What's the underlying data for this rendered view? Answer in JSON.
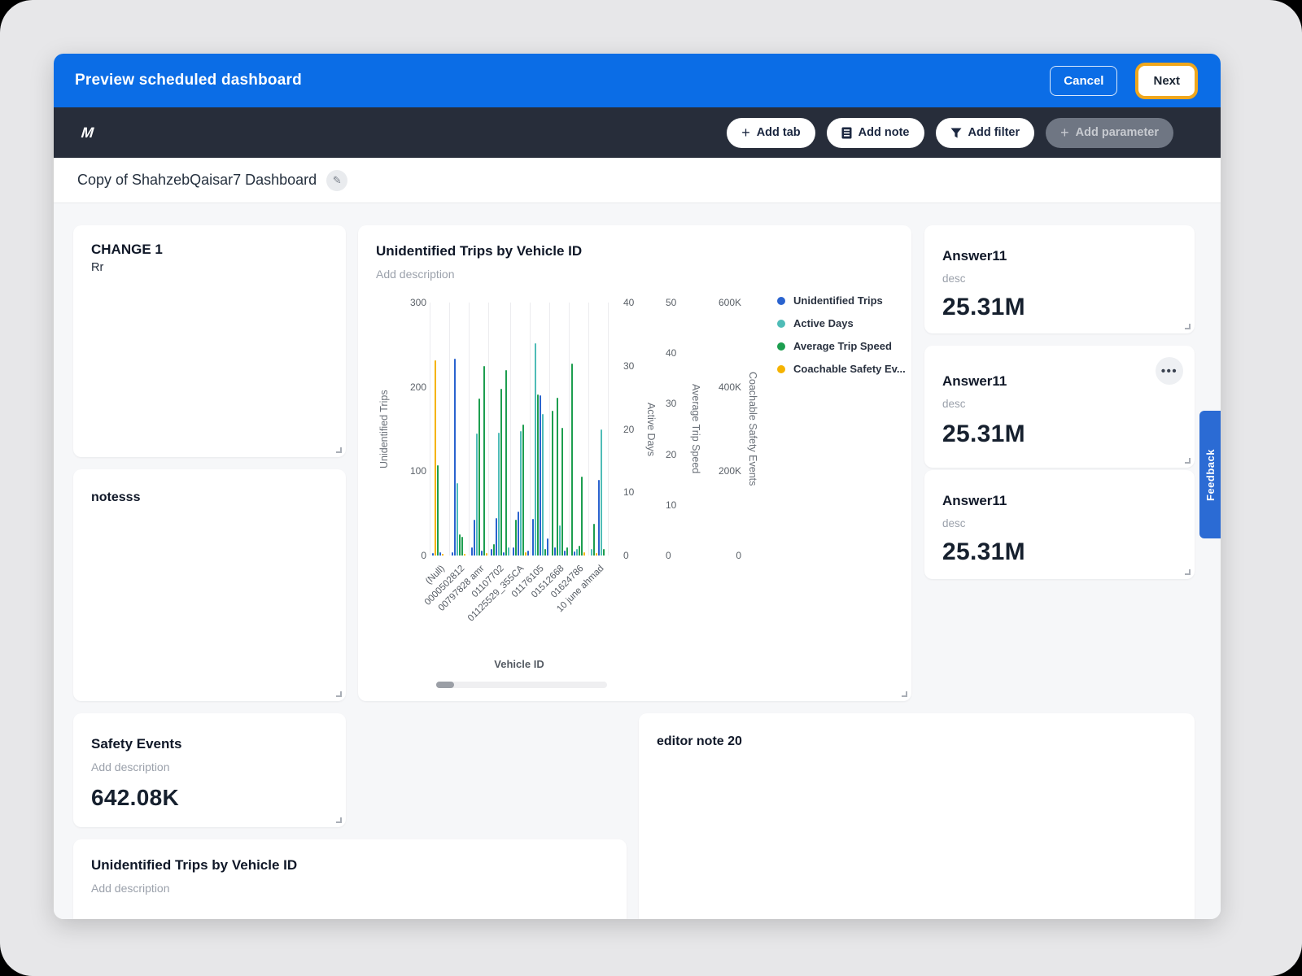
{
  "window": {
    "header": {
      "title": "Preview scheduled dashboard",
      "cancel_label": "Cancel",
      "next_label": "Next"
    },
    "toolbar": {
      "logo": "M",
      "add_tab": "Add tab",
      "add_note": "Add note",
      "add_filter": "Add filter",
      "add_parameter": "Add parameter"
    },
    "dashboard_title": "Copy of ShahzebQaisar7 Dashboard"
  },
  "cards": {
    "change1": {
      "title": "CHANGE 1",
      "body": "Rr"
    },
    "notes": {
      "title": "notesss"
    },
    "chart": {
      "title": "Unidentified Trips by Vehicle ID",
      "description": "Add description"
    },
    "answers": [
      {
        "title": "Answer11",
        "desc": "desc",
        "value": "25.31M"
      },
      {
        "title": "Answer11",
        "desc": "desc",
        "value": "25.31M",
        "menu_glyph": "•••"
      },
      {
        "title": "Answer11",
        "desc": "desc",
        "value": "25.31M"
      }
    ],
    "safety_events": {
      "title": "Safety Events",
      "description": "Add description",
      "value": "642.08K"
    },
    "bottom_chart": {
      "title": "Unidentified Trips by Vehicle ID",
      "description": "Add description"
    },
    "editor_note": {
      "title": "editor note 20"
    }
  },
  "feedback": {
    "label": "Feedback"
  },
  "colors": {
    "header_blue": "#0b6de6",
    "toolbar_dark": "#272d3a",
    "focus_ring": "#f0a71c",
    "feedback_blue": "#2b6bd4"
  },
  "chart_data": {
    "type": "bar",
    "title": "Unidentified Trips by Vehicle ID",
    "xlabel": "Vehicle ID",
    "categories": [
      "(Null)",
      "0000502812",
      "00797828 amr",
      "01107702",
      "01125529_355CA",
      "01176105",
      "01512668",
      "01624786",
      "10 june ahmad"
    ],
    "axes": [
      {
        "label": "Unidentified Trips",
        "side": "left",
        "ticks": [
          "0",
          "100",
          "200",
          "300"
        ],
        "range": [
          0,
          300
        ]
      },
      {
        "label": "Active Days",
        "side": "right",
        "ticks": [
          "0",
          "10",
          "20",
          "30",
          "40"
        ],
        "range": [
          0,
          40
        ]
      },
      {
        "label": "Average Trip Speed",
        "side": "right",
        "ticks": [
          "0",
          "10",
          "20",
          "30",
          "40",
          "50"
        ],
        "range": [
          0,
          50
        ]
      },
      {
        "label": "Coachable Safety Events",
        "side": "right",
        "ticks": [
          "0",
          "200K",
          "400K",
          "600K"
        ],
        "range": [
          0,
          600000
        ]
      }
    ],
    "legend": [
      {
        "name": "Unidentified Trips",
        "key": "b",
        "color": "#2a63cf"
      },
      {
        "name": "Active Days",
        "key": "t",
        "color": "#4fbcb7"
      },
      {
        "name": "Average Trip Speed",
        "key": "g",
        "color": "#1d9e4f"
      },
      {
        "name": "Coachable Safety Ev...",
        "key": "y",
        "color": "#f5b300"
      }
    ],
    "colors": {
      "b": "#2a63cf",
      "t": "#4fbcb7",
      "g": "#1d9e4f",
      "y": "#f5b300"
    },
    "left_axis_max": 300,
    "grid": true,
    "legend_position": "right",
    "groups": [
      {
        "category": "(Null)",
        "bars": [
          [
            "b",
            3
          ],
          [
            "y",
            232
          ],
          [
            "g",
            107
          ],
          [
            "b",
            4
          ],
          [
            "y",
            2
          ]
        ]
      },
      {
        "category": "0000502812",
        "bars": [
          [
            "b",
            4
          ],
          [
            "b",
            233
          ],
          [
            "t",
            86
          ],
          [
            "g",
            25
          ],
          [
            "g",
            22
          ],
          [
            "y",
            2
          ]
        ]
      },
      {
        "category": "00797828 amr",
        "bars": [
          [
            "b",
            10
          ],
          [
            "b",
            42
          ],
          [
            "t",
            145
          ],
          [
            "g",
            186
          ],
          [
            "b",
            6
          ],
          [
            "g",
            225
          ],
          [
            "y",
            3
          ]
        ]
      },
      {
        "category": "01107702",
        "bars": [
          [
            "b",
            8
          ],
          [
            "g",
            14
          ],
          [
            "b",
            44
          ],
          [
            "t",
            146
          ],
          [
            "g",
            198
          ],
          [
            "b",
            4
          ],
          [
            "g",
            220
          ],
          [
            "t",
            10
          ]
        ]
      },
      {
        "category": "01125529_355CA",
        "bars": [
          [
            "b",
            10
          ],
          [
            "g",
            42
          ],
          [
            "b",
            52
          ],
          [
            "t",
            148
          ],
          [
            "g",
            155
          ],
          [
            "y",
            4
          ],
          [
            "b",
            6
          ]
        ]
      },
      {
        "category": "01176105",
        "bars": [
          [
            "b",
            43
          ],
          [
            "t",
            252
          ],
          [
            "g",
            191
          ],
          [
            "b",
            190
          ],
          [
            "t",
            168
          ],
          [
            "g",
            8
          ],
          [
            "b",
            20
          ]
        ]
      },
      {
        "category": "01512668",
        "bars": [
          [
            "g",
            172
          ],
          [
            "b",
            10
          ],
          [
            "g",
            187
          ],
          [
            "t",
            36
          ],
          [
            "g",
            151
          ],
          [
            "b",
            6
          ],
          [
            "g",
            10
          ]
        ]
      },
      {
        "category": "01624786",
        "bars": [
          [
            "g",
            228
          ],
          [
            "b",
            5
          ],
          [
            "t",
            8
          ],
          [
            "g",
            12
          ],
          [
            "g",
            94
          ],
          [
            "y",
            4
          ]
        ]
      },
      {
        "category": "10 june ahmad",
        "bars": [
          [
            "t",
            8
          ],
          [
            "g",
            38
          ],
          [
            "y",
            3
          ],
          [
            "b",
            90
          ],
          [
            "t",
            150
          ],
          [
            "g",
            8
          ]
        ]
      }
    ]
  }
}
